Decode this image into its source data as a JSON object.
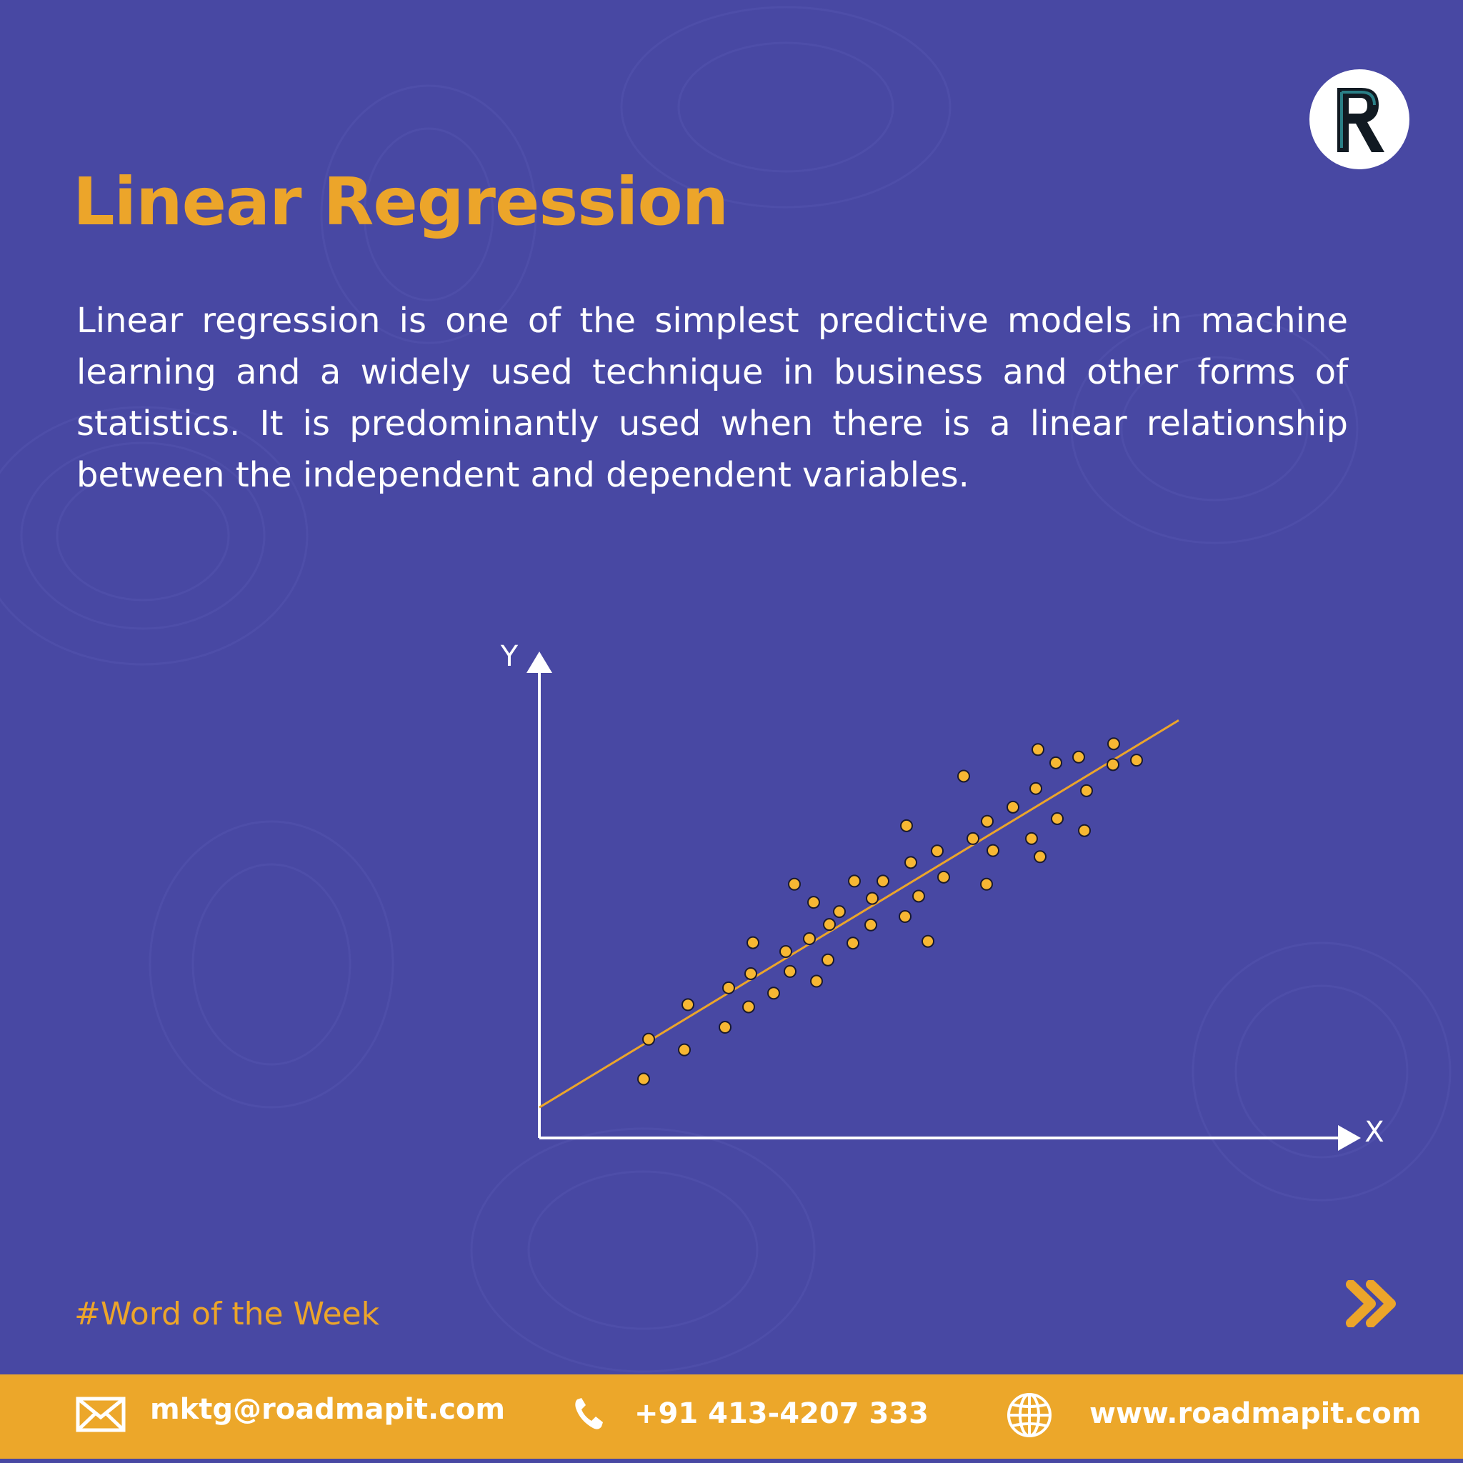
{
  "brand": {
    "logo_icon": "roadmap-r-logo-icon",
    "colors": {
      "background": "#4848A3",
      "accent": "#ECA52A",
      "text": "#FFFFFF",
      "footer": "#ECA72A"
    }
  },
  "header": {
    "title": "Linear Regression"
  },
  "body": {
    "description": "Linear regression is one of the simplest predictive models in machine learning and a widely used technique in business and other forms of statistics. It is predominantly used when there is a linear relationship between the independent and dependent variables."
  },
  "chart_data": {
    "type": "scatter",
    "xlabel": "X",
    "ylabel": "Y",
    "xlim": [
      0,
      100
    ],
    "ylim": [
      0,
      100
    ],
    "grid": false,
    "points": [
      [
        14.6,
        13.3
      ],
      [
        15.3,
        22.3
      ],
      [
        20.3,
        19.9
      ],
      [
        20.8,
        30.1
      ],
      [
        26.0,
        25.0
      ],
      [
        26.5,
        33.9
      ],
      [
        29.3,
        29.6
      ],
      [
        29.6,
        37.1
      ],
      [
        29.9,
        44.1
      ],
      [
        32.8,
        32.7
      ],
      [
        34.5,
        42.1
      ],
      [
        35.1,
        37.6
      ],
      [
        35.7,
        57.3
      ],
      [
        37.8,
        45.0
      ],
      [
        38.4,
        53.2
      ],
      [
        38.8,
        35.4
      ],
      [
        40.4,
        40.2
      ],
      [
        40.6,
        48.2
      ],
      [
        42.0,
        51.1
      ],
      [
        43.9,
        44.0
      ],
      [
        44.1,
        58.0
      ],
      [
        46.4,
        48.1
      ],
      [
        46.6,
        54.1
      ],
      [
        48.1,
        58.0
      ],
      [
        51.2,
        50.0
      ],
      [
        51.4,
        70.5
      ],
      [
        52.0,
        62.2
      ],
      [
        53.1,
        54.6
      ],
      [
        54.4,
        44.4
      ],
      [
        55.7,
        64.8
      ],
      [
        56.6,
        58.9
      ],
      [
        59.4,
        81.7
      ],
      [
        60.7,
        67.6
      ],
      [
        62.6,
        57.3
      ],
      [
        62.7,
        71.5
      ],
      [
        63.5,
        64.9
      ],
      [
        66.3,
        74.7
      ],
      [
        68.9,
        67.6
      ],
      [
        69.5,
        78.9
      ],
      [
        69.8,
        87.7
      ],
      [
        70.1,
        63.5
      ],
      [
        72.3,
        84.7
      ],
      [
        72.5,
        72.1
      ],
      [
        75.5,
        86.0
      ],
      [
        76.3,
        69.4
      ],
      [
        76.6,
        78.4
      ],
      [
        80.3,
        84.3
      ],
      [
        80.4,
        89.0
      ],
      [
        83.6,
        85.3
      ]
    ],
    "regression_line": {
      "x": [
        0,
        89.5
      ],
      "y": [
        6.9,
        94.3
      ]
    }
  },
  "footer": {
    "hashtag": "#Word of the Week",
    "next_icon": "double-chevron-right-icon",
    "email_icon": "envelope-icon",
    "email": "mktg@roadmapit.com",
    "phone_icon": "phone-icon",
    "phone": "+91 413-4207 333",
    "web_icon": "globe-icon",
    "website": "www.roadmapit.com"
  }
}
